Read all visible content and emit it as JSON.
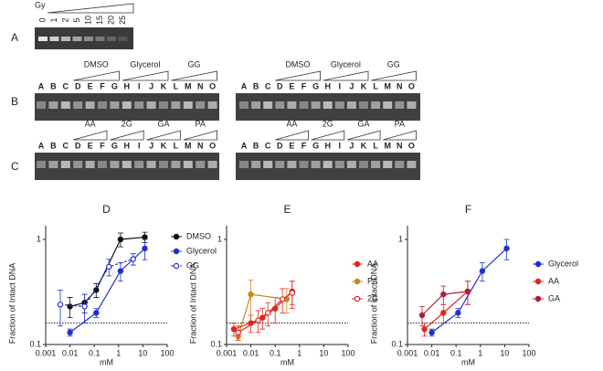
{
  "gels": {
    "A": {
      "label": "A",
      "unit": "Gy",
      "doses": [
        "0",
        "1",
        "2",
        "5",
        "10",
        "15",
        "20",
        "25"
      ]
    },
    "B": {
      "label": "B",
      "lanes": [
        "A",
        "B",
        "C",
        "D",
        "E",
        "F",
        "G",
        "H",
        "I",
        "J",
        "K",
        "L",
        "M",
        "N",
        "O"
      ],
      "groups": [
        "DMSO",
        "Glycerol",
        "GG"
      ]
    },
    "C": {
      "label": "C",
      "lanes": [
        "A",
        "B",
        "C",
        "D",
        "E",
        "F",
        "G",
        "H",
        "I",
        "J",
        "K",
        "L",
        "M",
        "N",
        "O"
      ],
      "groups": [
        "AA",
        "2G",
        "GA",
        "PA"
      ]
    }
  },
  "chart_data": [
    {
      "type": "line",
      "title": "D",
      "xlabel": "mM",
      "ylabel": "Fraction of Intact DNA",
      "xlog": true,
      "ylog": true,
      "xlim": [
        0.001,
        100
      ],
      "ylim": [
        0.1,
        1.35
      ],
      "xticks": [
        0.001,
        0.01,
        0.1,
        1,
        10,
        100
      ],
      "yticks": [
        0.1,
        1
      ],
      "reference_line": 0.16,
      "legend": "upper right",
      "series": [
        {
          "name": "DMSO",
          "color": "#111111",
          "marker": "filled",
          "dashed": false,
          "x": [
            0.01,
            0.04,
            0.12,
            1.2,
            12
          ],
          "values": [
            0.23,
            0.25,
            0.33,
            1.0,
            1.05
          ],
          "errors": [
            0.05,
            0.05,
            0.05,
            0.15,
            0.12
          ]
        },
        {
          "name": "Glycerol",
          "color": "#1f2fd0",
          "marker": "filled",
          "dashed": false,
          "x": [
            0.01,
            0.12,
            1.2,
            12
          ],
          "values": [
            0.13,
            0.2,
            0.5,
            0.82
          ],
          "errors": [
            0.01,
            0.02,
            0.1,
            0.18
          ]
        },
        {
          "name": "GG",
          "color": "#1f2fd0",
          "marker": "open",
          "dashed": true,
          "x": [
            0.004,
            0.04,
            0.4,
            4
          ],
          "values": [
            0.24,
            0.23,
            0.55,
            0.65
          ],
          "errors": [
            0.09,
            0.07,
            0.1,
            0.08
          ]
        }
      ]
    },
    {
      "type": "line",
      "title": "E",
      "xlabel": "mM",
      "ylabel": "Fraction of Intact DNA",
      "xlog": true,
      "ylog": true,
      "xlim": [
        0.001,
        100
      ],
      "ylim": [
        0.1,
        1.35
      ],
      "xticks": [
        0.001,
        0.01,
        0.1,
        1,
        10,
        100
      ],
      "yticks": [
        0.1,
        1
      ],
      "reference_line": 0.16,
      "legend": "center right",
      "series": [
        {
          "name": "AA",
          "color": "#e0261c",
          "marker": "filled",
          "dashed": false,
          "x": [
            0.002,
            0.01,
            0.03,
            0.1,
            0.5
          ],
          "values": [
            0.14,
            0.16,
            0.18,
            0.22,
            0.32
          ],
          "errors": [
            0.02,
            0.03,
            0.04,
            0.06,
            0.08
          ]
        },
        {
          "name": "PA",
          "color": "#c8861a",
          "marker": "filled",
          "dashed": false,
          "x": [
            0.003,
            0.01,
            0.3
          ],
          "values": [
            0.12,
            0.3,
            0.27
          ],
          "errors": [
            0.01,
            0.11,
            0.07
          ]
        },
        {
          "name": "2G",
          "color": "#e0261c",
          "marker": "open",
          "dashed": false,
          "x": [
            0.003,
            0.02,
            0.05,
            0.2,
            0.5
          ],
          "values": [
            0.13,
            0.17,
            0.2,
            0.27,
            0.31
          ],
          "errors": [
            0.02,
            0.04,
            0.05,
            0.07,
            0.09
          ]
        }
      ]
    },
    {
      "type": "line",
      "title": "F",
      "xlabel": "mM",
      "ylabel": "Fraction of Intact DNA",
      "xlog": true,
      "ylog": true,
      "xlim": [
        0.001,
        100
      ],
      "ylim": [
        0.1,
        1.35
      ],
      "xticks": [
        0.001,
        0.01,
        0.1,
        1,
        10,
        100
      ],
      "yticks": [
        0.1,
        1
      ],
      "reference_line": 0.16,
      "legend": "center right",
      "series": [
        {
          "name": "Glycerol",
          "color": "#1f2fd0",
          "marker": "filled",
          "dashed": false,
          "x": [
            0.01,
            0.12,
            1.2,
            12
          ],
          "values": [
            0.13,
            0.2,
            0.5,
            0.82
          ],
          "errors": [
            0.01,
            0.02,
            0.1,
            0.18
          ]
        },
        {
          "name": "AA",
          "color": "#e0261c",
          "marker": "filled",
          "dashed": false,
          "x": [
            0.005,
            0.03,
            0.3
          ],
          "values": [
            0.14,
            0.2,
            0.32
          ],
          "errors": [
            0.02,
            0.04,
            0.08
          ]
        },
        {
          "name": "GA",
          "color": "#b0203a",
          "marker": "filled",
          "dashed": false,
          "x": [
            0.004,
            0.03,
            0.3
          ],
          "values": [
            0.19,
            0.3,
            0.32
          ],
          "errors": [
            0.04,
            0.06,
            0.08
          ]
        }
      ]
    }
  ]
}
